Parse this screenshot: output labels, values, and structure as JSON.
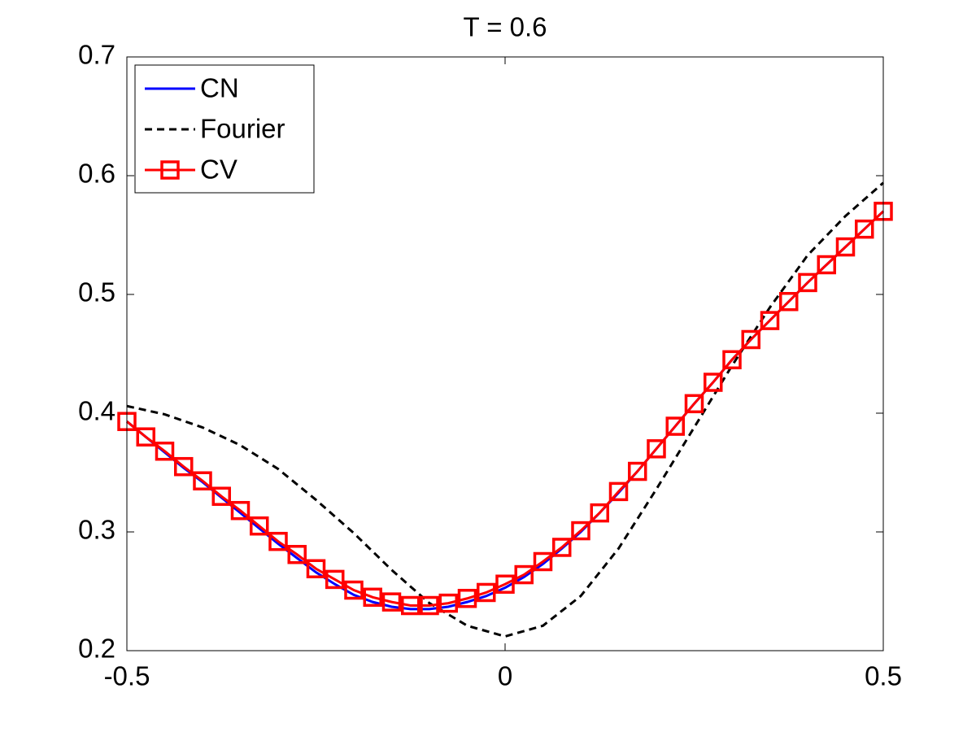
{
  "chart_data": {
    "type": "line",
    "title": "T = 0.6",
    "xlim": [
      -0.5,
      0.5
    ],
    "xticks": [
      -0.5,
      0,
      0.5
    ],
    "ylim": [
      0.2,
      0.7
    ],
    "yticks": [
      0.2,
      0.3,
      0.4,
      0.5,
      0.6,
      0.7
    ],
    "grid": false,
    "legend_position": "upper left",
    "series": [
      {
        "name": "CN",
        "color": "#0000ff",
        "line_style": "solid",
        "marker": "none",
        "x": [
          -0.5,
          -0.475,
          -0.45,
          -0.425,
          -0.4,
          -0.375,
          -0.35,
          -0.325,
          -0.3,
          -0.275,
          -0.25,
          -0.225,
          -0.2,
          -0.175,
          -0.15,
          -0.125,
          -0.1,
          -0.075,
          -0.05,
          -0.025,
          0,
          0.025,
          0.05,
          0.075,
          0.1,
          0.125,
          0.15,
          0.175,
          0.2,
          0.225,
          0.25,
          0.275,
          0.3,
          0.325,
          0.35,
          0.375,
          0.4,
          0.425,
          0.45,
          0.475,
          0.5
        ],
        "values": [
          0.393,
          0.38,
          0.367,
          0.354,
          0.342,
          0.329,
          0.316,
          0.303,
          0.29,
          0.278,
          0.266,
          0.256,
          0.247,
          0.241,
          0.237,
          0.235,
          0.235,
          0.237,
          0.241,
          0.246,
          0.253,
          0.262,
          0.273,
          0.286,
          0.3,
          0.316,
          0.333,
          0.351,
          0.37,
          0.389,
          0.408,
          0.426,
          0.445,
          0.462,
          0.478,
          0.494,
          0.51,
          0.525,
          0.54,
          0.555,
          0.57
        ]
      },
      {
        "name": "Fourier",
        "color": "#000000",
        "line_style": "dashed",
        "marker": "none",
        "x": [
          -0.5,
          -0.45,
          -0.4,
          -0.35,
          -0.3,
          -0.25,
          -0.2,
          -0.15,
          -0.1,
          -0.05,
          0,
          0.05,
          0.1,
          0.15,
          0.2,
          0.25,
          0.3,
          0.35,
          0.4,
          0.45,
          0.5
        ],
        "values": [
          0.406,
          0.399,
          0.388,
          0.373,
          0.353,
          0.327,
          0.299,
          0.268,
          0.24,
          0.221,
          0.212,
          0.221,
          0.246,
          0.286,
          0.336,
          0.388,
          0.44,
          0.489,
          0.533,
          0.566,
          0.594
        ]
      },
      {
        "name": "CV",
        "color": "#ff0000",
        "line_style": "solid",
        "marker": "square",
        "x": [
          -0.5,
          -0.475,
          -0.45,
          -0.425,
          -0.4,
          -0.375,
          -0.35,
          -0.325,
          -0.3,
          -0.275,
          -0.25,
          -0.225,
          -0.2,
          -0.175,
          -0.15,
          -0.125,
          -0.1,
          -0.075,
          -0.05,
          -0.025,
          0,
          0.025,
          0.05,
          0.075,
          0.1,
          0.125,
          0.15,
          0.175,
          0.2,
          0.225,
          0.25,
          0.275,
          0.3,
          0.325,
          0.35,
          0.375,
          0.4,
          0.425,
          0.45,
          0.475,
          0.5
        ],
        "values": [
          0.393,
          0.38,
          0.368,
          0.355,
          0.343,
          0.33,
          0.318,
          0.305,
          0.292,
          0.281,
          0.269,
          0.26,
          0.251,
          0.245,
          0.241,
          0.238,
          0.238,
          0.24,
          0.244,
          0.249,
          0.256,
          0.264,
          0.275,
          0.287,
          0.301,
          0.316,
          0.334,
          0.351,
          0.37,
          0.389,
          0.408,
          0.426,
          0.445,
          0.462,
          0.478,
          0.494,
          0.51,
          0.525,
          0.54,
          0.555,
          0.57
        ]
      }
    ]
  }
}
